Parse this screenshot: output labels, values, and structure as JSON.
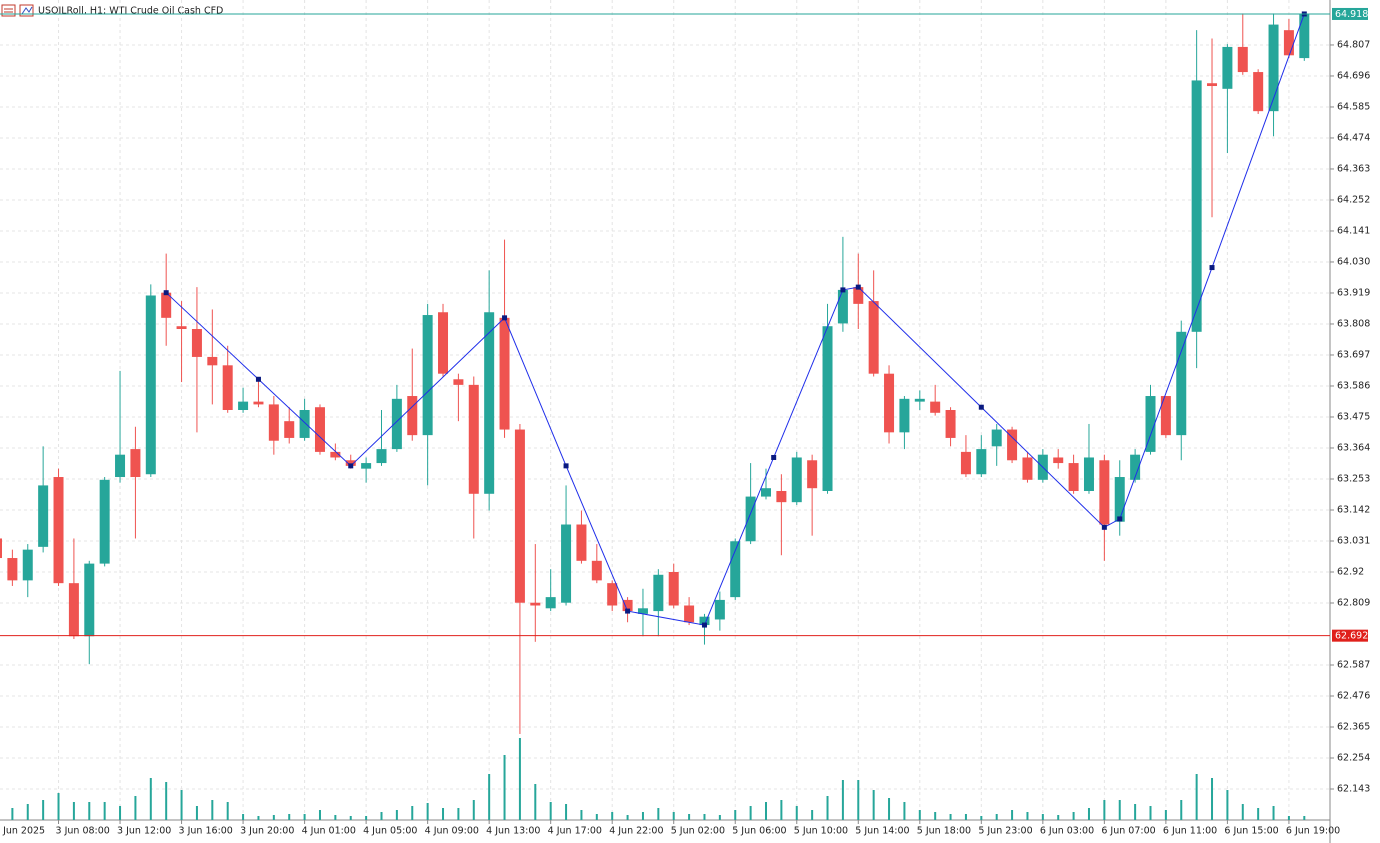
{
  "chart_data": {
    "type": "candlestick",
    "title": "USOILRoll, H1:  WTI Crude Oil Cash CFD",
    "categories": [
      "3 Jun 2025",
      null,
      null,
      null,
      "3 Jun 08:00",
      null,
      null,
      null,
      "3 Jun 12:00",
      null,
      null,
      null,
      "3 Jun 16:00",
      null,
      null,
      null,
      "3 Jun 20:00",
      null,
      null,
      null,
      "4 Jun 01:00",
      null,
      null,
      null,
      "4 Jun 05:00",
      null,
      null,
      null,
      "4 Jun 09:00",
      null,
      null,
      null,
      "4 Jun 13:00",
      null,
      null,
      null,
      "4 Jun 17:00",
      null,
      null,
      null,
      "4 Jun 22:00",
      null,
      null,
      null,
      "5 Jun 02:00",
      null,
      null,
      null,
      "5 Jun 06:00",
      null,
      null,
      null,
      "5 Jun 10:00",
      null,
      null,
      null,
      "5 Jun 14:00",
      null,
      null,
      null,
      "5 Jun 18:00",
      null,
      null,
      null,
      "5 Jun 23:00",
      null,
      null,
      null,
      "6 Jun 03:00",
      null,
      null,
      null,
      "6 Jun 07:00",
      null,
      null,
      null,
      "6 Jun 11:00",
      null,
      null,
      null,
      "6 Jun 15:00",
      null,
      null,
      null,
      "6 Jun 19:00",
      null
    ],
    "open": [
      63.04,
      62.97,
      62.89,
      63.01,
      63.26,
      62.88,
      62.69,
      62.95,
      63.26,
      63.36,
      63.27,
      63.92,
      63.8,
      63.79,
      63.69,
      63.66,
      63.5,
      63.53,
      63.52,
      63.46,
      63.4,
      63.51,
      63.35,
      63.32,
      63.29,
      63.31,
      63.36,
      63.55,
      63.41,
      63.85,
      63.61,
      63.59,
      63.2,
      63.83,
      63.43,
      62.81,
      62.79,
      62.81,
      63.09,
      62.96,
      62.88,
      62.82,
      62.77,
      62.78,
      62.92,
      62.8,
      62.73,
      62.75,
      62.83,
      63.03,
      63.19,
      63.21,
      63.17,
      63.32,
      63.21,
      63.81,
      63.94,
      63.89,
      63.63,
      63.42,
      63.53,
      63.53,
      63.5,
      63.35,
      63.27,
      63.37,
      63.43,
      63.33,
      63.25,
      63.33,
      63.31,
      63.21,
      63.32,
      63.1,
      63.25,
      63.35,
      63.55,
      63.41,
      63.78,
      64.67,
      64.65,
      64.8,
      64.71,
      64.57,
      64.86,
      64.76
    ],
    "high": [
      63.05,
      63.0,
      63.02,
      63.37,
      63.29,
      63.04,
      62.96,
      63.26,
      63.64,
      63.44,
      63.95,
      64.06,
      63.89,
      63.94,
      63.86,
      63.73,
      63.58,
      63.61,
      63.55,
      63.51,
      63.54,
      63.52,
      63.38,
      63.34,
      63.33,
      63.5,
      63.59,
      63.72,
      63.88,
      63.88,
      63.63,
      63.62,
      64.0,
      64.11,
      63.45,
      63.02,
      62.93,
      63.23,
      63.14,
      63.02,
      62.89,
      62.83,
      62.86,
      62.93,
      62.95,
      62.83,
      62.77,
      62.85,
      63.04,
      63.31,
      63.29,
      63.27,
      63.35,
      63.34,
      63.88,
      64.12,
      64.06,
      64.0,
      63.66,
      63.55,
      63.57,
      63.59,
      63.51,
      63.41,
      63.41,
      63.45,
      63.44,
      63.35,
      63.36,
      63.36,
      63.34,
      63.45,
      63.34,
      63.32,
      63.36,
      63.59,
      63.55,
      63.82,
      64.86,
      64.83,
      64.81,
      64.92,
      64.72,
      64.92,
      64.9,
      64.92
    ],
    "low": [
      62.96,
      62.87,
      62.83,
      62.99,
      62.87,
      62.68,
      62.59,
      62.94,
      63.24,
      63.04,
      63.26,
      63.73,
      63.6,
      63.42,
      63.52,
      63.49,
      63.49,
      63.51,
      63.34,
      63.38,
      63.39,
      63.34,
      63.32,
      63.29,
      63.24,
      63.3,
      63.35,
      63.39,
      63.23,
      63.62,
      63.46,
      63.04,
      63.14,
      63.4,
      62.34,
      62.67,
      62.78,
      62.8,
      62.95,
      62.88,
      62.78,
      62.74,
      62.69,
      62.69,
      62.79,
      62.73,
      62.66,
      62.71,
      62.82,
      63.02,
      63.18,
      62.98,
      63.16,
      63.05,
      63.2,
      63.78,
      63.79,
      63.62,
      63.38,
      63.36,
      63.5,
      63.48,
      63.37,
      63.26,
      63.26,
      63.3,
      63.31,
      63.24,
      63.24,
      63.29,
      63.2,
      63.2,
      62.96,
      63.05,
      63.24,
      63.34,
      63.4,
      63.32,
      63.65,
      64.19,
      64.42,
      64.7,
      64.56,
      64.48,
      64.76,
      64.75
    ],
    "close": [
      62.97,
      62.89,
      63.0,
      63.23,
      62.88,
      62.69,
      62.95,
      63.25,
      63.34,
      63.26,
      63.91,
      63.83,
      63.79,
      63.69,
      63.66,
      63.5,
      63.53,
      63.52,
      63.39,
      63.4,
      63.5,
      63.35,
      63.33,
      63.3,
      63.31,
      63.36,
      63.54,
      63.41,
      63.84,
      63.63,
      63.59,
      63.2,
      63.85,
      63.43,
      62.81,
      62.8,
      62.83,
      63.09,
      62.96,
      62.89,
      62.8,
      62.78,
      62.79,
      62.91,
      62.8,
      62.74,
      62.76,
      62.82,
      63.03,
      63.19,
      63.22,
      63.17,
      63.33,
      63.22,
      63.8,
      63.93,
      63.88,
      63.63,
      63.42,
      63.54,
      63.54,
      63.49,
      63.4,
      63.27,
      63.36,
      63.43,
      63.32,
      63.25,
      63.34,
      63.31,
      63.21,
      63.33,
      63.09,
      63.26,
      63.34,
      63.55,
      63.41,
      63.78,
      64.68,
      64.66,
      64.8,
      64.71,
      64.57,
      64.88,
      64.77,
      64.918
    ],
    "volume": [
      8,
      12,
      16,
      20,
      27,
      18,
      18,
      18,
      14,
      24,
      42,
      38,
      30,
      14,
      20,
      18,
      6,
      4,
      5,
      6,
      6,
      10,
      5,
      4,
      4,
      8,
      10,
      14,
      17,
      12,
      12,
      20,
      46,
      65,
      82,
      36,
      18,
      16,
      10,
      6,
      8,
      5,
      8,
      12,
      8,
      6,
      6,
      5,
      10,
      14,
      18,
      20,
      14,
      10,
      24,
      40,
      40,
      30,
      22,
      18,
      10,
      8,
      6,
      6,
      4,
      6,
      10,
      8,
      6,
      5,
      8,
      12,
      20,
      20,
      16,
      14,
      10,
      20,
      46,
      42,
      30,
      16,
      12,
      14,
      4,
      4
    ],
    "up_color": "#26a69a",
    "down_color": "#ef5350",
    "ylim": [
      62.032,
      64.968
    ],
    "yticks": [
      64.807,
      64.696,
      64.585,
      64.474,
      64.363,
      64.252,
      64.141,
      {
        "value": 64.03,
        "label": "64.030"
      },
      63.919,
      63.808,
      63.697,
      63.586,
      63.475,
      63.364,
      63.253,
      63.142,
      63.031,
      62.92,
      62.809,
      62.587,
      62.476,
      62.365,
      62.254,
      62.143
    ],
    "grid": true,
    "zigzag": {
      "color": "#1f2eea",
      "x": [
        11,
        17,
        23,
        33,
        37,
        41,
        46,
        50.5,
        55,
        56,
        64,
        72,
        73,
        79,
        85
      ],
      "values": [
        63.92,
        63.61,
        63.3,
        63.83,
        63.3,
        62.78,
        62.73,
        63.33,
        63.93,
        63.94,
        63.51,
        63.08,
        63.11,
        64.01,
        64.918
      ]
    },
    "price_lines": [
      {
        "value": 64.918,
        "color": "#26a69a"
      },
      {
        "value": 62.692,
        "color": "#e0201b"
      }
    ]
  }
}
